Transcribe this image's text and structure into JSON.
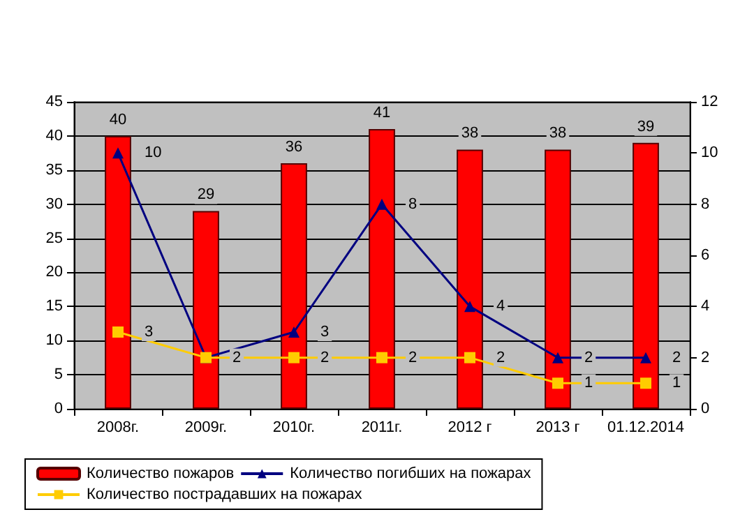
{
  "chart_data": {
    "type": "bar",
    "categories": [
      "2008г.",
      "2009г.",
      "2010г.",
      "2011г.",
      "2012 г",
      "2013 г",
      "01.12.2014"
    ],
    "series": [
      {
        "name": "Количество пожаров",
        "color": "#ff0000",
        "values": [
          40,
          29,
          36,
          41,
          38,
          38,
          39
        ]
      },
      {
        "name": "Количество погибших на пожарах",
        "type": "line",
        "axis": "y2",
        "marker": "triangle",
        "color": "#000080",
        "values": [
          10,
          2,
          3,
          8,
          4,
          2,
          2
        ]
      },
      {
        "name": "Количество пострадавших на пожарах",
        "type": "line",
        "axis": "y2",
        "marker": "square",
        "color": "#ffcc00",
        "values": [
          3,
          2,
          2,
          2,
          2,
          1,
          1
        ],
        "value_labels": [
          "3",
          null,
          "2",
          "2",
          "2",
          "1",
          "1"
        ]
      }
    ],
    "ylim": [
      0,
      45
    ],
    "yticks": [
      0,
      5,
      10,
      15,
      20,
      25,
      30,
      35,
      40,
      45
    ],
    "y2lim": [
      0,
      12
    ],
    "y2ticks": [
      0,
      2,
      4,
      6,
      8,
      10,
      12
    ],
    "grid": "y",
    "legend": "bottom",
    "data_labels": true
  }
}
